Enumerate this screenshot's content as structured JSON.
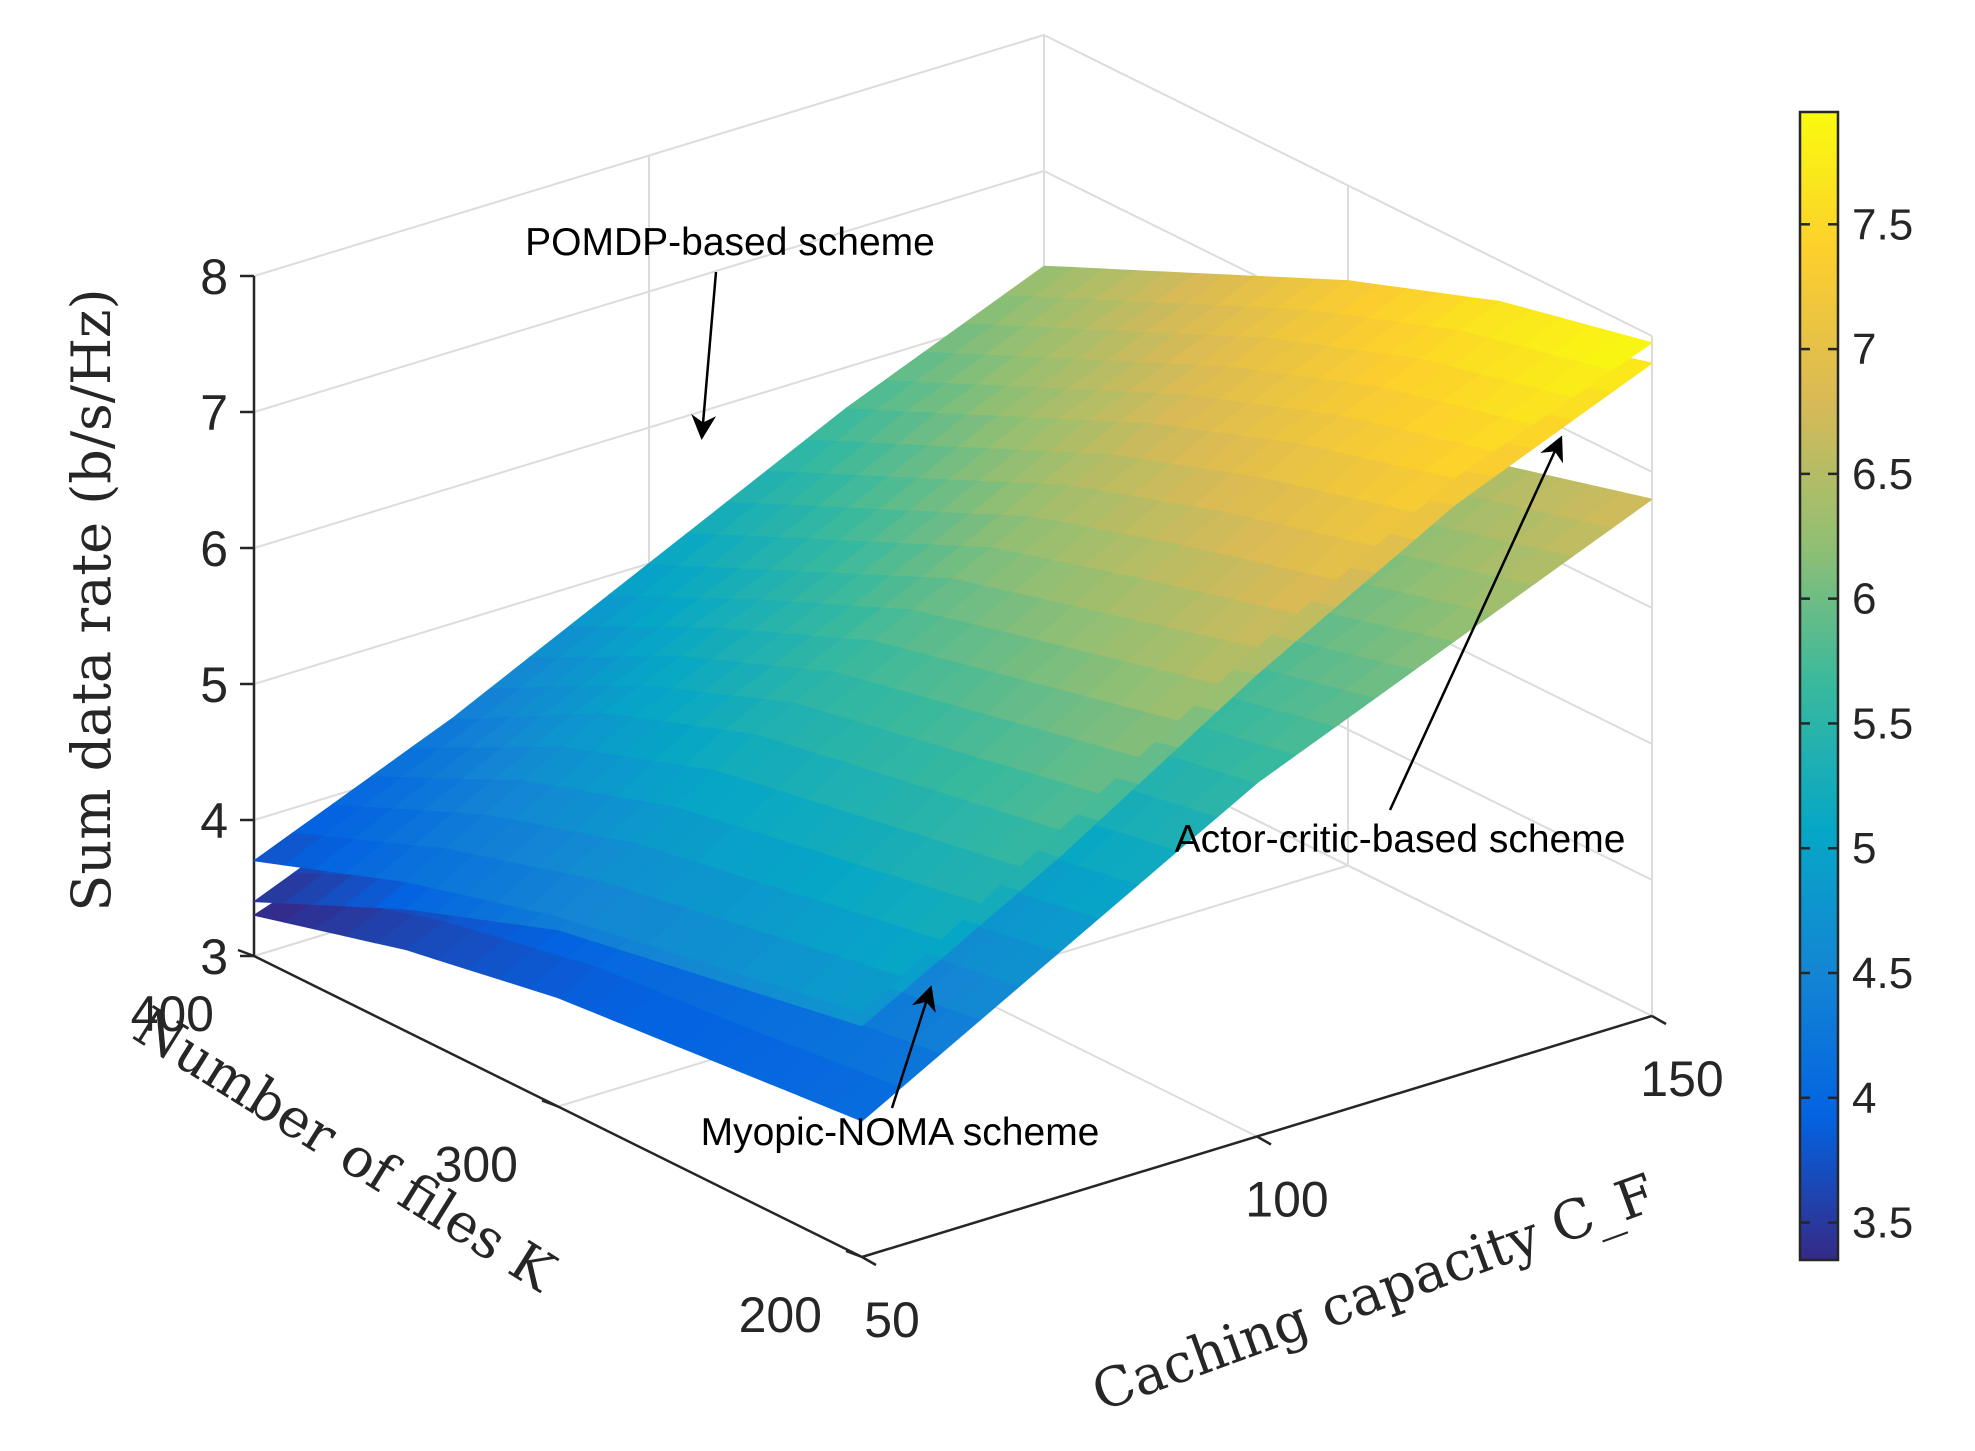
{
  "chart_data": {
    "type": "surface3d",
    "title": "",
    "xlabel": "Caching capacity C_F",
    "ylabel": "Number of files K",
    "zlabel": "Sum data rate (b/s/Hz)",
    "x": [
      50,
      75,
      100,
      125,
      150
    ],
    "y": [
      200,
      250,
      300,
      350,
      400
    ],
    "xlim": [
      50,
      150
    ],
    "ylim": [
      200,
      400
    ],
    "zlim": [
      3,
      8
    ],
    "xticks": [
      "50",
      "100",
      "150"
    ],
    "yticks": [
      "200",
      "300",
      "400"
    ],
    "zticks": [
      "3",
      "4",
      "5",
      "6",
      "7",
      "8"
    ],
    "grid": true,
    "colormap": "parula",
    "clim": [
      3.35,
      7.95
    ],
    "colorbar_ticks": [
      "3.5",
      "4",
      "4.5",
      "5",
      "5.5",
      "6",
      "6.5",
      "7",
      "7.5"
    ],
    "series": [
      {
        "name": "POMDP-based scheme",
        "z": [
          [
            4.8,
            5.7,
            6.6,
            7.4,
            7.95
          ],
          [
            4.6,
            5.5,
            6.3,
            7.1,
            7.7
          ],
          [
            4.4,
            5.3,
            6.0,
            6.7,
            7.3
          ],
          [
            4.1,
            4.9,
            5.5,
            6.2,
            6.8
          ],
          [
            3.7,
            4.3,
            5.0,
            5.7,
            6.3
          ]
        ]
      },
      {
        "name": "Actor-critic-based scheme",
        "z": [
          [
            4.7,
            5.5,
            6.4,
            7.2,
            7.8
          ],
          [
            4.5,
            5.3,
            6.1,
            6.9,
            7.5
          ],
          [
            4.3,
            5.1,
            5.8,
            6.5,
            7.0
          ],
          [
            3.9,
            4.7,
            5.3,
            5.9,
            6.4
          ],
          [
            3.4,
            4.0,
            4.6,
            5.2,
            5.7
          ]
        ]
      },
      {
        "name": "Myopic-NOMA scheme",
        "z": [
          [
            4.0,
            4.8,
            5.6,
            6.2,
            6.8
          ],
          [
            3.9,
            4.6,
            5.4,
            5.9,
            6.5
          ],
          [
            3.8,
            4.5,
            5.1,
            5.6,
            6.1
          ],
          [
            3.6,
            4.2,
            4.8,
            5.3,
            5.7
          ],
          [
            3.3,
            3.8,
            4.3,
            4.8,
            5.2
          ]
        ]
      }
    ],
    "annotations": [
      {
        "text": "POMDP-based scheme",
        "target_series": "POMDP-based scheme"
      },
      {
        "text": "Actor-critic-based scheme",
        "target_series": "Actor-critic-based scheme"
      },
      {
        "text": "Myopic-NOMA scheme",
        "target_series": "Myopic-NOMA scheme"
      }
    ]
  },
  "colors": {
    "background": "#ffffff",
    "grid": "#dcdcdc",
    "axis": "#262626",
    "text": "#262626"
  }
}
